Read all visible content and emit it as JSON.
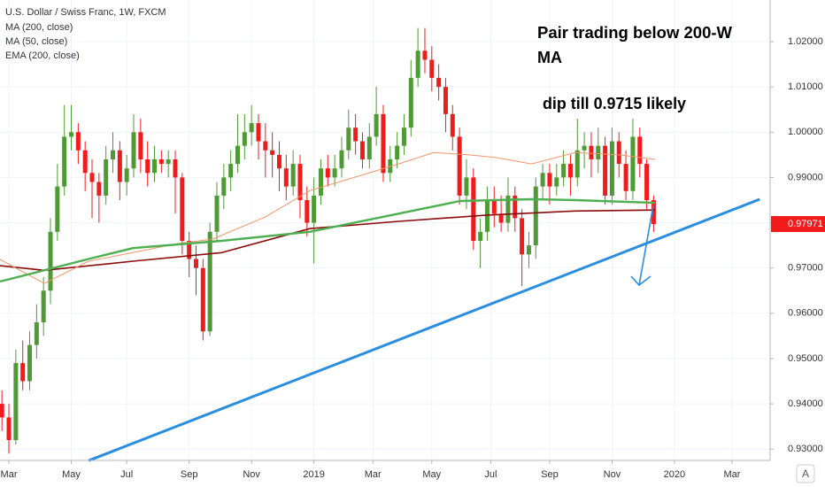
{
  "chart_data": {
    "type": "candlestick",
    "title": "U.S. Dollar / Swiss Franc, 1W, FXCM",
    "legend_items": [
      "MA (200, close)",
      "MA (50, close)",
      "EMA (200, close)"
    ],
    "annotations": [
      "Pair trading below 200-W",
      "MA",
      "dip till 0.9715 likely"
    ],
    "axis_button": "A",
    "last_price": 0.97971,
    "up_color": "#4e9a34",
    "down_color": "#f21b1b",
    "grid": true,
    "xlim": [
      -1.28,
      109.8
    ],
    "ylim": [
      0.9275,
      1.0292
    ],
    "yticks": [
      {
        "value": 0.93,
        "label": "0.93000"
      },
      {
        "value": 0.94,
        "label": "0.94000"
      },
      {
        "value": 0.95,
        "label": "0.95000"
      },
      {
        "value": 0.96,
        "label": "0.96000"
      },
      {
        "value": 0.97,
        "label": "0.97000"
      },
      {
        "value": 0.98,
        "label": "0.98000"
      },
      {
        "value": 0.99,
        "label": "0.99000"
      },
      {
        "value": 1.0,
        "label": "1.00000"
      },
      {
        "value": 1.01,
        "label": "1.01000"
      },
      {
        "value": 1.02,
        "label": "1.02000"
      }
    ],
    "xticks": [
      {
        "value": 0,
        "label": "Mar"
      },
      {
        "value": 9,
        "label": "May"
      },
      {
        "value": 17,
        "label": "Jul"
      },
      {
        "value": 26,
        "label": "Sep"
      },
      {
        "value": 35,
        "label": "Nov"
      },
      {
        "value": 44,
        "label": "2019"
      },
      {
        "value": 52.5,
        "label": "Mar"
      },
      {
        "value": 61,
        "label": "May"
      },
      {
        "value": 69.5,
        "label": "Jul"
      },
      {
        "value": 78,
        "label": "Sep"
      },
      {
        "value": 87,
        "label": "Nov"
      },
      {
        "value": 96,
        "label": "2020"
      },
      {
        "value": 104.3,
        "label": "Mar"
      }
    ],
    "x": [
      -1,
      0,
      1,
      2,
      3,
      4,
      5,
      6,
      7,
      8,
      9,
      10,
      11,
      12,
      13,
      14,
      15,
      16,
      17,
      18,
      19,
      20,
      21,
      22,
      23,
      24,
      25,
      26,
      27,
      28,
      29,
      30,
      31,
      32,
      33,
      34,
      35,
      36,
      37,
      38,
      39,
      40,
      41,
      42,
      43,
      44,
      45,
      46,
      47,
      48,
      49,
      50,
      51,
      52,
      53,
      54,
      55,
      56,
      57,
      58,
      59,
      60,
      61,
      62,
      63,
      64,
      65,
      66,
      67,
      68,
      69,
      70,
      71,
      72,
      73,
      74,
      75,
      76,
      77,
      78,
      79,
      80,
      81,
      82,
      83,
      84,
      85,
      86,
      87,
      88,
      89,
      90,
      91,
      92,
      93
    ],
    "open": [
      0.94,
      0.937,
      0.932,
      0.949,
      0.945,
      0.953,
      0.958,
      0.965,
      0.978,
      0.988,
      0.999,
      1.0,
      0.996,
      0.991,
      0.989,
      0.986,
      0.994,
      0.996,
      0.989,
      0.992,
      1.0,
      0.994,
      0.991,
      0.994,
      0.993,
      0.994,
      0.99,
      0.976,
      0.972,
      0.97,
      0.956,
      0.978,
      0.986,
      0.99,
      0.993,
      0.997,
      1.0,
      1.002,
      0.998,
      0.996,
      0.995,
      0.992,
      0.988,
      0.993,
      0.985,
      0.98,
      0.986,
      0.992,
      0.99,
      0.992,
      0.996,
      1.001,
      0.998,
      0.994,
      0.999,
      1.004,
      0.991,
      0.994,
      0.997,
      1.001,
      1.012,
      1.018,
      1.016,
      1.012,
      1.01,
      1.004,
      0.999,
      0.986,
      0.99,
      0.976,
      0.978,
      0.985,
      0.982,
      0.98,
      0.986,
      0.981,
      0.973,
      0.975,
      0.988,
      0.991,
      0.988,
      0.99,
      0.993,
      0.99,
      0.996,
      0.997,
      0.994,
      0.997,
      0.986,
      0.998,
      0.993,
      0.987,
      0.999,
      0.993,
      0.985
    ],
    "high": [
      0.943,
      0.94,
      0.952,
      0.954,
      0.956,
      0.962,
      0.968,
      0.981,
      0.993,
      1.006,
      1.006,
      1.002,
      0.998,
      0.994,
      0.991,
      0.997,
      1.0,
      0.998,
      0.995,
      1.004,
      1.003,
      0.998,
      0.997,
      0.996,
      0.996,
      0.996,
      0.991,
      0.978,
      0.975,
      0.972,
      0.98,
      0.989,
      0.993,
      0.996,
      1.004,
      1.004,
      1.006,
      1.004,
      1.002,
      1.0,
      0.998,
      0.995,
      0.996,
      0.995,
      0.988,
      0.99,
      0.994,
      0.995,
      0.995,
      0.999,
      1.005,
      1.004,
      1.0,
      1.002,
      1.01,
      1.006,
      0.997,
      1.0,
      1.004,
      1.016,
      1.023,
      1.023,
      1.019,
      1.015,
      1.012,
      1.006,
      1.001,
      0.994,
      0.992,
      0.981,
      0.988,
      0.988,
      0.986,
      0.99,
      0.988,
      0.983,
      0.978,
      0.99,
      0.993,
      0.993,
      0.993,
      0.996,
      0.995,
      1.003,
      1.0,
      1.0,
      1.001,
      0.999,
      1.001,
      1.0,
      0.996,
      1.003,
      1.001,
      0.994,
      0.986
    ],
    "low": [
      0.934,
      0.929,
      0.931,
      0.943,
      0.943,
      0.95,
      0.955,
      0.962,
      0.976,
      0.986,
      0.996,
      0.993,
      0.987,
      0.981,
      0.98,
      0.984,
      0.991,
      0.985,
      0.986,
      0.99,
      0.991,
      0.988,
      0.989,
      0.991,
      0.99,
      0.982,
      0.973,
      0.968,
      0.964,
      0.954,
      0.955,
      0.976,
      0.983,
      0.987,
      0.991,
      0.994,
      0.997,
      0.994,
      0.99,
      0.99,
      0.987,
      0.985,
      0.986,
      0.981,
      0.977,
      0.971,
      0.984,
      0.988,
      0.988,
      0.99,
      0.994,
      0.995,
      0.992,
      0.992,
      0.997,
      0.989,
      0.989,
      0.992,
      0.995,
      0.999,
      1.01,
      1.013,
      1.009,
      1.007,
      1.0,
      0.996,
      0.984,
      0.983,
      0.974,
      0.97,
      0.976,
      0.979,
      0.978,
      0.978,
      0.978,
      0.966,
      0.97,
      0.972,
      0.985,
      0.984,
      0.986,
      0.988,
      0.986,
      0.988,
      0.992,
      0.99,
      0.991,
      0.984,
      0.984,
      0.99,
      0.985,
      0.985,
      0.99,
      0.983,
      0.978
    ],
    "close": [
      0.937,
      0.932,
      0.949,
      0.945,
      0.953,
      0.958,
      0.965,
      0.978,
      0.988,
      0.999,
      1.0,
      0.996,
      0.991,
      0.989,
      0.986,
      0.994,
      0.996,
      0.989,
      0.992,
      1.0,
      0.994,
      0.991,
      0.994,
      0.993,
      0.994,
      0.99,
      0.976,
      0.972,
      0.97,
      0.956,
      0.978,
      0.986,
      0.99,
      0.993,
      0.997,
      1.0,
      1.002,
      0.998,
      0.996,
      0.995,
      0.992,
      0.988,
      0.993,
      0.985,
      0.98,
      0.986,
      0.992,
      0.99,
      0.992,
      0.996,
      1.001,
      0.998,
      0.994,
      0.999,
      1.004,
      0.991,
      0.994,
      0.997,
      1.001,
      1.012,
      1.018,
      1.016,
      1.012,
      1.01,
      1.004,
      0.999,
      0.986,
      0.99,
      0.976,
      0.978,
      0.985,
      0.982,
      0.98,
      0.986,
      0.981,
      0.973,
      0.975,
      0.988,
      0.991,
      0.988,
      0.99,
      0.993,
      0.99,
      0.996,
      0.997,
      0.994,
      0.997,
      0.986,
      0.998,
      0.993,
      0.987,
      0.999,
      0.993,
      0.985,
      0.9797
    ],
    "series": [
      {
        "name": "MA (200, close)",
        "color": "#8b0a0a",
        "width": 1.6,
        "x": [
          -1.28,
          5.1,
          17.9,
          30.7,
          43.4,
          56.2,
          69.0,
          81.7,
          93.2
        ],
        "values": [
          0.9705,
          0.9695,
          0.9715,
          0.9734,
          0.9787,
          0.9803,
          0.9817,
          0.9826,
          0.9828
        ]
      },
      {
        "name": "MA (50, close)",
        "color": "#f4956b",
        "width": 1,
        "x": [
          -1.28,
          5.1,
          11.5,
          17.9,
          24.3,
          29.4,
          37.0,
          43.4,
          49.8,
          56.2,
          61.3,
          66.4,
          70.2,
          75.4,
          81.7,
          88.1,
          93.2
        ],
        "values": [
          0.9719,
          0.9666,
          0.9715,
          0.9734,
          0.9754,
          0.9764,
          0.9813,
          0.9871,
          0.99,
          0.993,
          0.9955,
          0.995,
          0.9944,
          0.993,
          0.9955,
          0.995,
          0.994
        ]
      },
      {
        "name": "EMA (200, close)",
        "color": "#4caf50",
        "width": 2.4,
        "x": [
          -1.28,
          11.5,
          17.9,
          30.7,
          43.4,
          56.2,
          65.1,
          75.4,
          81.7,
          93.2
        ],
        "values": [
          0.967,
          0.972,
          0.9744,
          0.976,
          0.978,
          0.982,
          0.9848,
          0.9852,
          0.985,
          0.9844
        ]
      }
    ],
    "trendline": {
      "color": "#2a8ee0",
      "x": [
        11.5,
        108.3
      ],
      "values": [
        0.92746,
        0.9852
      ]
    }
  }
}
